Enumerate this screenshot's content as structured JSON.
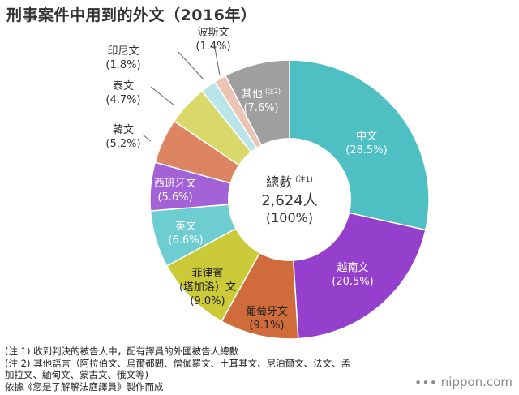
{
  "title": "刑事案件中用到的外文（2016年）",
  "chart_data": {
    "type": "pie",
    "title": "刑事案件中用到的外文（2016年）",
    "start_angle_deg": 0,
    "direction": "clockwise",
    "slices": [
      {
        "label": "中文",
        "value": 28.5,
        "value_label": "(28.5%)",
        "color": "#4ec0c4",
        "label_inside": true,
        "text_color": "#ffffff"
      },
      {
        "label": "越南文",
        "value": 20.5,
        "value_label": "(20.5%)",
        "color": "#9540cc",
        "label_inside": true,
        "text_color": "#ffffff"
      },
      {
        "label": "葡萄牙文",
        "value": 9.1,
        "value_label": "(9.1%)",
        "color": "#d06b3b",
        "label_inside": true,
        "text_color": "#222222"
      },
      {
        "label": "菲律賓\n(塔加洛）文",
        "value": 9.0,
        "value_label": "(9.0%)",
        "color": "#cbcb3a",
        "label_inside": true,
        "text_color": "#222222"
      },
      {
        "label": "英文",
        "value": 6.6,
        "value_label": "(6.6%)",
        "color": "#6dcdd0",
        "label_inside": true,
        "text_color": "#ffffff"
      },
      {
        "label": "西班牙文",
        "value": 5.6,
        "value_label": "(5.6%)",
        "color": "#a362d5",
        "label_inside": true,
        "text_color": "#ffffff"
      },
      {
        "label": "韓文",
        "value": 5.2,
        "value_label": "(5.2%)",
        "color": "#dd8562",
        "label_inside": false,
        "text_color": "#333333"
      },
      {
        "label": "泰文",
        "value": 4.7,
        "value_label": "(4.7%)",
        "color": "#d9d86a",
        "label_inside": false,
        "text_color": "#333333"
      },
      {
        "label": "印尼文",
        "value": 1.8,
        "value_label": "(1.8%)",
        "color": "#b9e5e8",
        "label_inside": false,
        "text_color": "#333333"
      },
      {
        "label": "波斯文",
        "value": 1.4,
        "value_label": "(1.4%)",
        "color": "#ebc4b4",
        "label_inside": false,
        "text_color": "#333333"
      },
      {
        "label": "其他",
        "label_note": "(注2)",
        "value": 7.6,
        "value_label": "(7.6%)",
        "color": "#9f9f9f",
        "label_inside": true,
        "text_color": "#ffffff"
      }
    ],
    "center": {
      "label": "總數",
      "label_note": "(注1)",
      "total": "2,624人",
      "percent": "(100%)"
    }
  },
  "notes": [
    "(注 1) 收到判決的被告人中，配有譯員的外國被告人總數",
    "(注 2) 其他語言（阿拉伯文、烏爾都問、僧伽羅文、土耳其文、尼泊爾文、法文、孟",
    "加拉文、緬甸文、蒙古文、俄文等)",
    "依據《您是了解解法庭譯員》製作而成"
  ],
  "source": {
    "logo_text": "nippon.com",
    "logo_mark": "∙∙∙"
  }
}
